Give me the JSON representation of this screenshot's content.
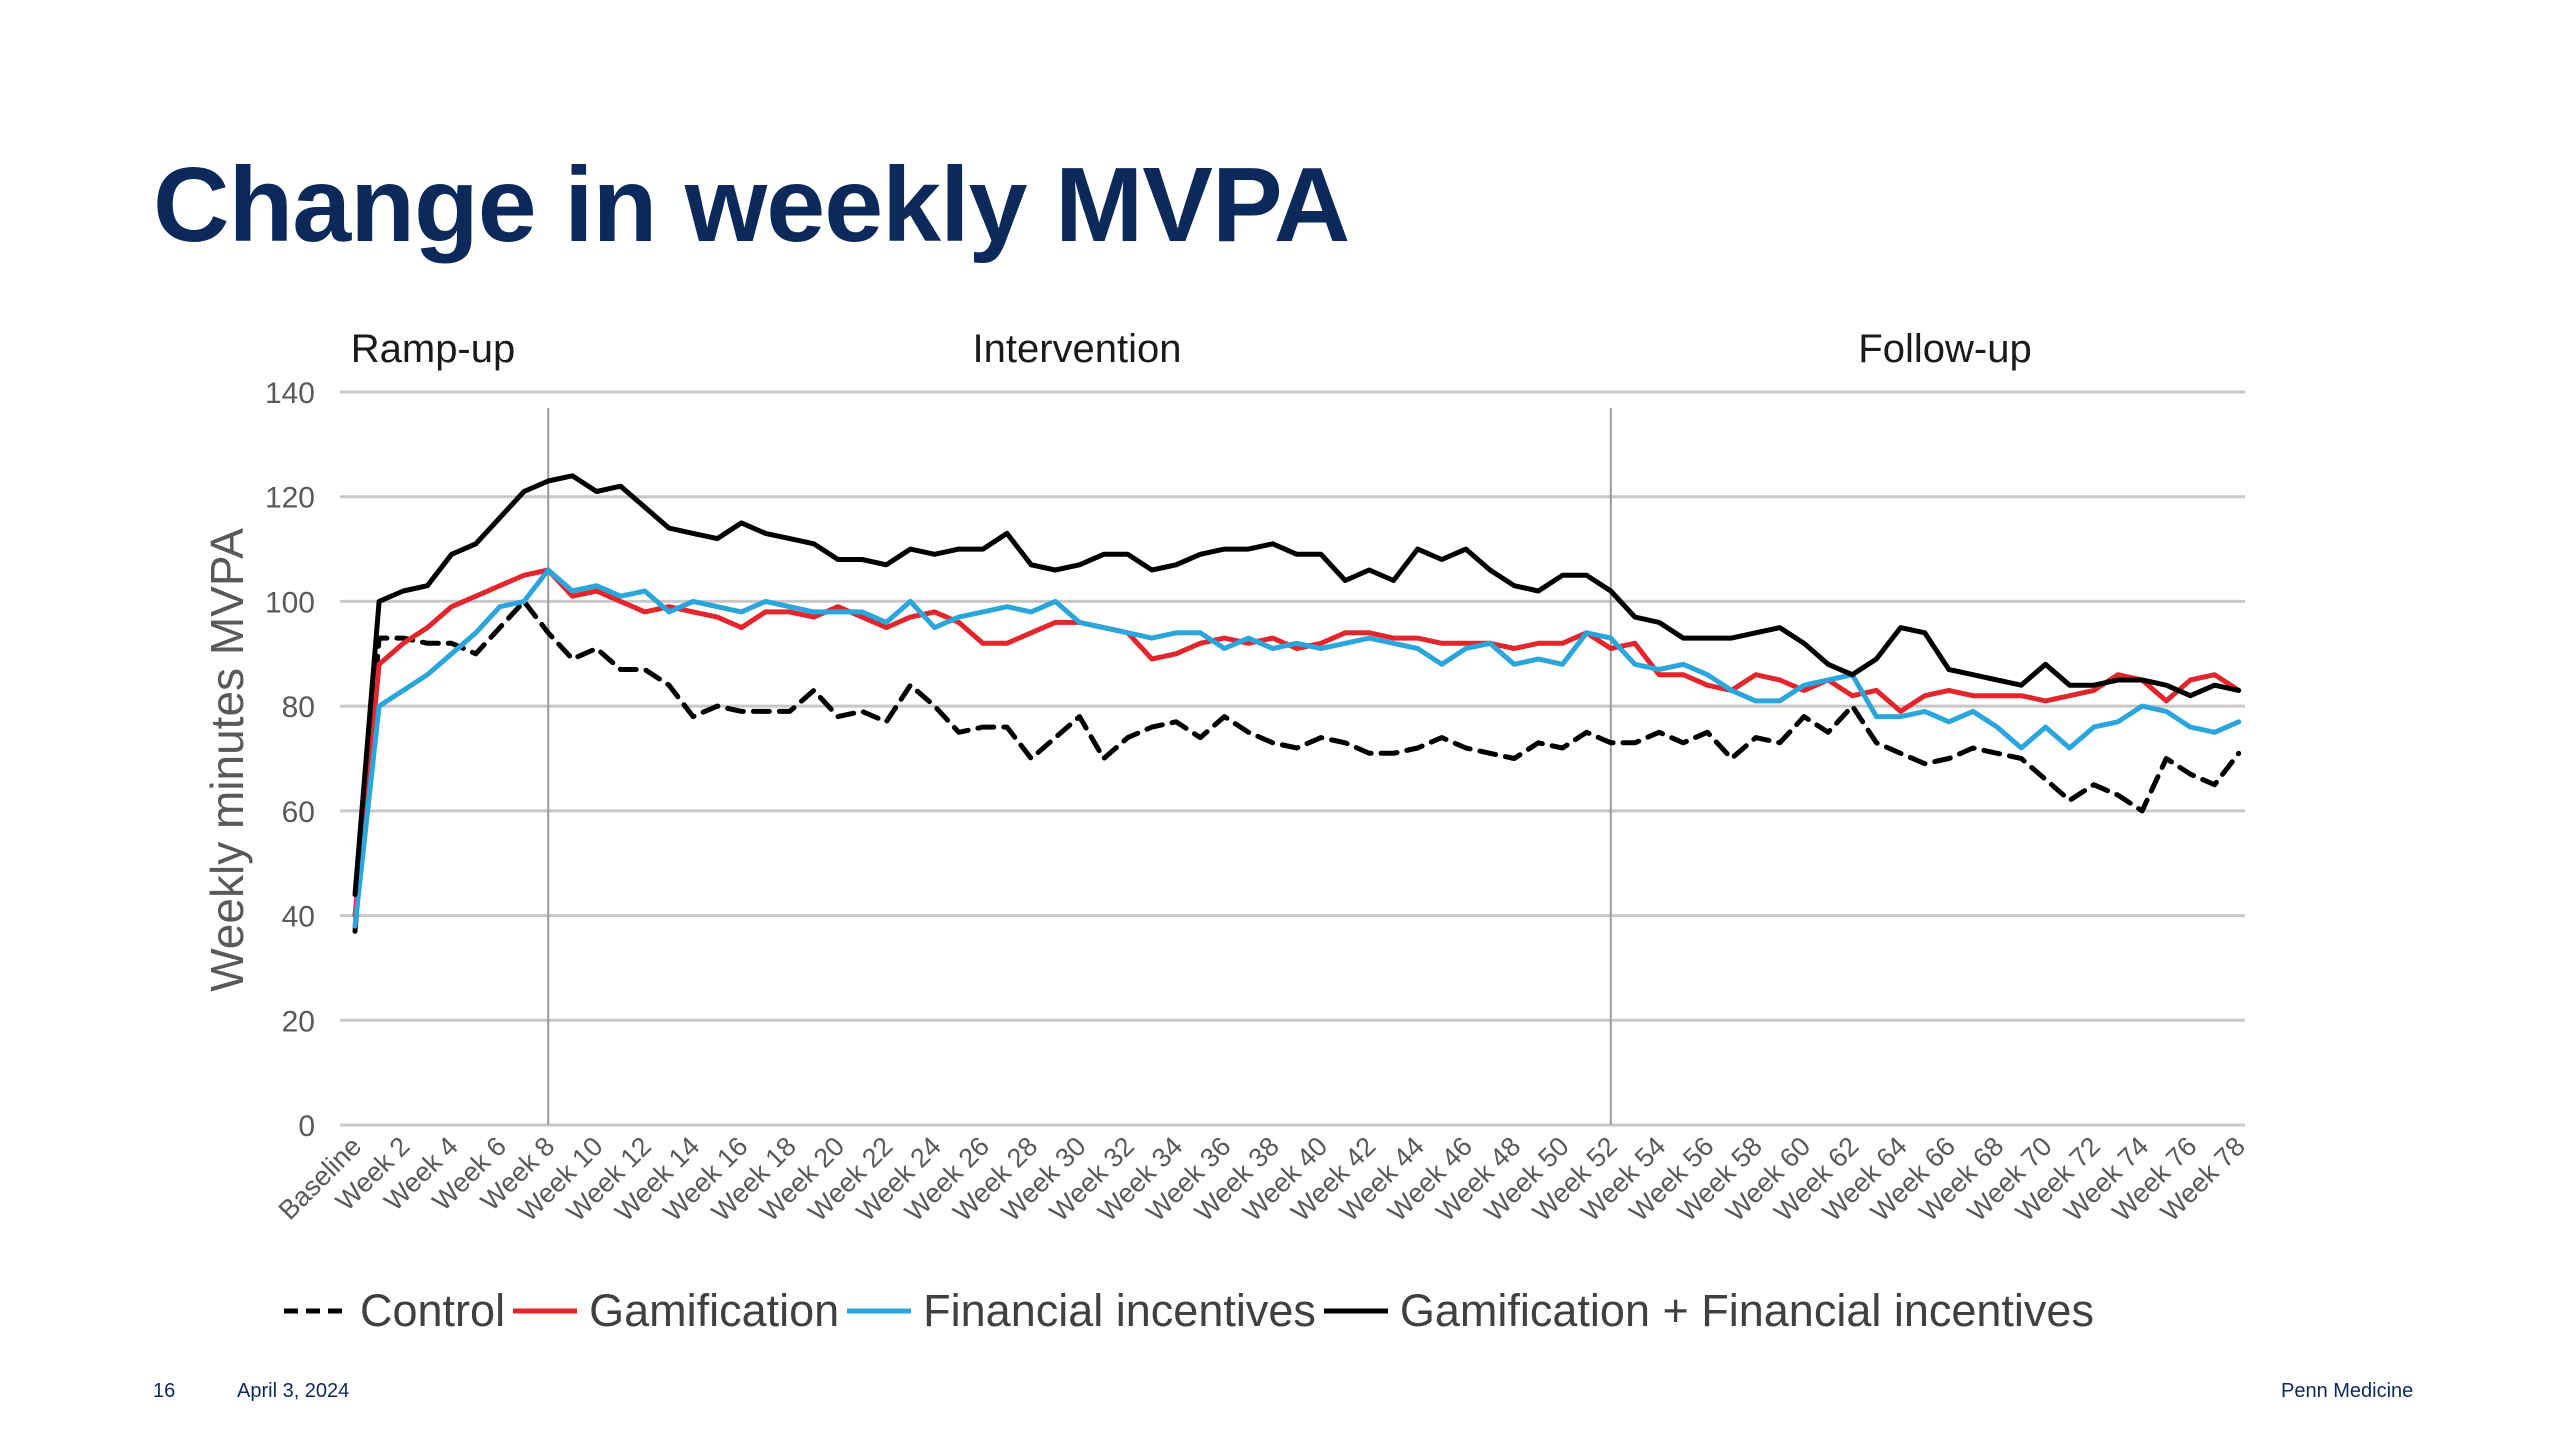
{
  "slide": {
    "title": "Change in weekly MVPA",
    "page_number": "16",
    "date": "April 3, 2024",
    "organization": "Penn Medicine"
  },
  "chart_data": {
    "type": "line",
    "title": "",
    "ylabel": "Weekly minutes MVPA",
    "xlabel": "",
    "ylim": [
      0,
      140
    ],
    "yticks": [
      0,
      20,
      40,
      60,
      80,
      100,
      120,
      140
    ],
    "grid": true,
    "legend_position": "bottom",
    "phases": [
      {
        "label": "Ramp-up",
        "start_week": 0,
        "end_week": 8
      },
      {
        "label": "Intervention",
        "start_week": 8,
        "end_week": 52
      },
      {
        "label": "Follow-up",
        "start_week": 52,
        "end_week": 78
      }
    ],
    "phase_dividers": [
      "Week 8",
      "Week 52"
    ],
    "x_tick_labels": [
      "Baseline",
      "Week 2",
      "Week 4",
      "Week 6",
      "Week 8",
      "Week 10",
      "Week 12",
      "Week 14",
      "Week 16",
      "Week 18",
      "Week 20",
      "Week 22",
      "Week 24",
      "Week 26",
      "Week 28",
      "Week 30",
      "Week 32",
      "Week 34",
      "Week 36",
      "Week 38",
      "Week 40",
      "Week 42",
      "Week 44",
      "Week 46",
      "Week 48",
      "Week 50",
      "Week 52",
      "Week 54",
      "Week 56",
      "Week 58",
      "Week 60",
      "Week 62",
      "Week 64",
      "Week 66",
      "Week 68",
      "Week 70",
      "Week 72",
      "Week 74",
      "Week 76",
      "Week 78"
    ],
    "x_weeks": "0 (Baseline) through 78, one value per week",
    "series": [
      {
        "name": "Control",
        "color": "#000000",
        "dash": "dashed",
        "values": [
          37,
          93,
          93,
          92,
          92,
          90,
          95,
          100,
          94,
          89,
          91,
          87,
          87,
          84,
          78,
          80,
          79,
          79,
          79,
          83,
          78,
          79,
          77,
          84,
          80,
          75,
          76,
          76,
          70,
          74,
          78,
          70,
          74,
          76,
          77,
          74,
          78,
          75,
          73,
          72,
          74,
          73,
          71,
          71,
          72,
          74,
          72,
          71,
          70,
          73,
          72,
          75,
          73,
          73,
          75,
          73,
          75,
          70,
          74,
          73,
          78,
          75,
          80,
          73,
          71,
          69,
          70,
          72,
          71,
          70,
          66,
          62,
          65,
          63,
          60,
          70,
          67,
          65,
          71
        ]
      },
      {
        "name": "Gamification",
        "color": "#e3262c",
        "dash": "solid",
        "values": [
          40,
          88,
          92,
          95,
          99,
          101,
          103,
          105,
          106,
          101,
          102,
          100,
          98,
          99,
          98,
          97,
          95,
          98,
          98,
          97,
          99,
          97,
          95,
          97,
          98,
          96,
          92,
          92,
          94,
          96,
          96,
          95,
          94,
          89,
          90,
          92,
          93,
          92,
          93,
          91,
          92,
          94,
          94,
          93,
          93,
          92,
          92,
          92,
          91,
          92,
          92,
          94,
          91,
          92,
          86,
          86,
          84,
          83,
          86,
          85,
          83,
          85,
          82,
          83,
          79,
          82,
          83,
          82,
          82,
          82,
          81,
          82,
          83,
          86,
          85,
          81,
          85,
          86,
          83
        ]
      },
      {
        "name": "Financial incentives",
        "color": "#2aa6dc",
        "dash": "solid",
        "values": [
          38,
          80,
          83,
          86,
          90,
          94,
          99,
          100,
          106,
          102,
          103,
          101,
          102,
          98,
          100,
          99,
          98,
          100,
          99,
          98,
          98,
          98,
          96,
          100,
          95,
          97,
          98,
          99,
          98,
          100,
          96,
          95,
          94,
          93,
          94,
          94,
          91,
          93,
          91,
          92,
          91,
          92,
          93,
          92,
          91,
          88,
          91,
          92,
          88,
          89,
          88,
          94,
          93,
          88,
          87,
          88,
          86,
          83,
          81,
          81,
          84,
          85,
          86,
          78,
          78,
          79,
          77,
          79,
          76,
          72,
          76,
          72,
          76,
          77,
          80,
          79,
          76,
          75,
          77
        ]
      },
      {
        "name": "Gamification + Financial incentives",
        "color": "#000000",
        "dash": "solid",
        "values": [
          44,
          100,
          102,
          103,
          109,
          111,
          116,
          121,
          123,
          124,
          121,
          122,
          118,
          114,
          113,
          112,
          115,
          113,
          112,
          111,
          108,
          108,
          107,
          110,
          109,
          110,
          110,
          113,
          107,
          106,
          107,
          109,
          109,
          106,
          107,
          109,
          110,
          110,
          111,
          109,
          109,
          104,
          106,
          104,
          110,
          108,
          110,
          106,
          103,
          102,
          105,
          105,
          102,
          97,
          96,
          93,
          93,
          93,
          94,
          95,
          92,
          88,
          86,
          89,
          95,
          94,
          87,
          86,
          85,
          84,
          88,
          84,
          84,
          85,
          85,
          84,
          82,
          84,
          83
        ]
      }
    ]
  }
}
